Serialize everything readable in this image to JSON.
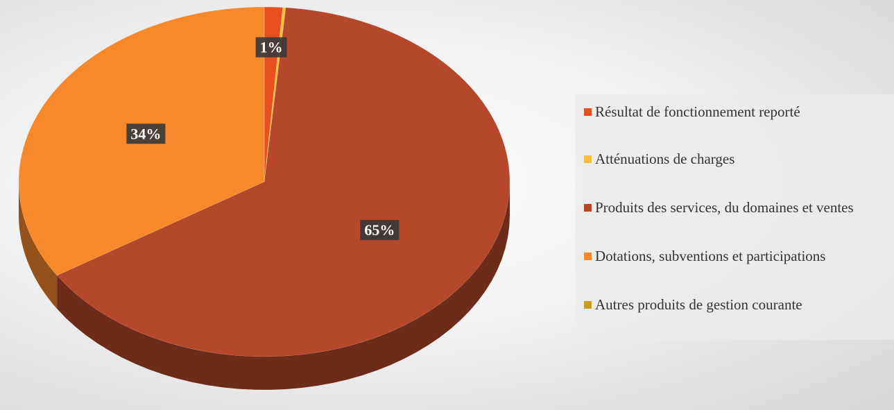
{
  "chart_data": {
    "type": "pie",
    "categories": [
      "Résultat de fonctionnement reporté",
      "Atténuations de charges",
      "Produits des services, du domaines et ventes",
      "Dotations, subventions et participations",
      "Autres produits de gestion courante"
    ],
    "values": [
      1.2,
      0.2,
      64.6,
      34,
      0
    ],
    "value_labels": [
      "1%",
      null,
      "65%",
      "34%",
      null
    ],
    "colors": [
      "#e8501f",
      "#f5c040",
      "#b5482a",
      "#f7892b",
      "#c8a020"
    ],
    "legend": "right"
  }
}
